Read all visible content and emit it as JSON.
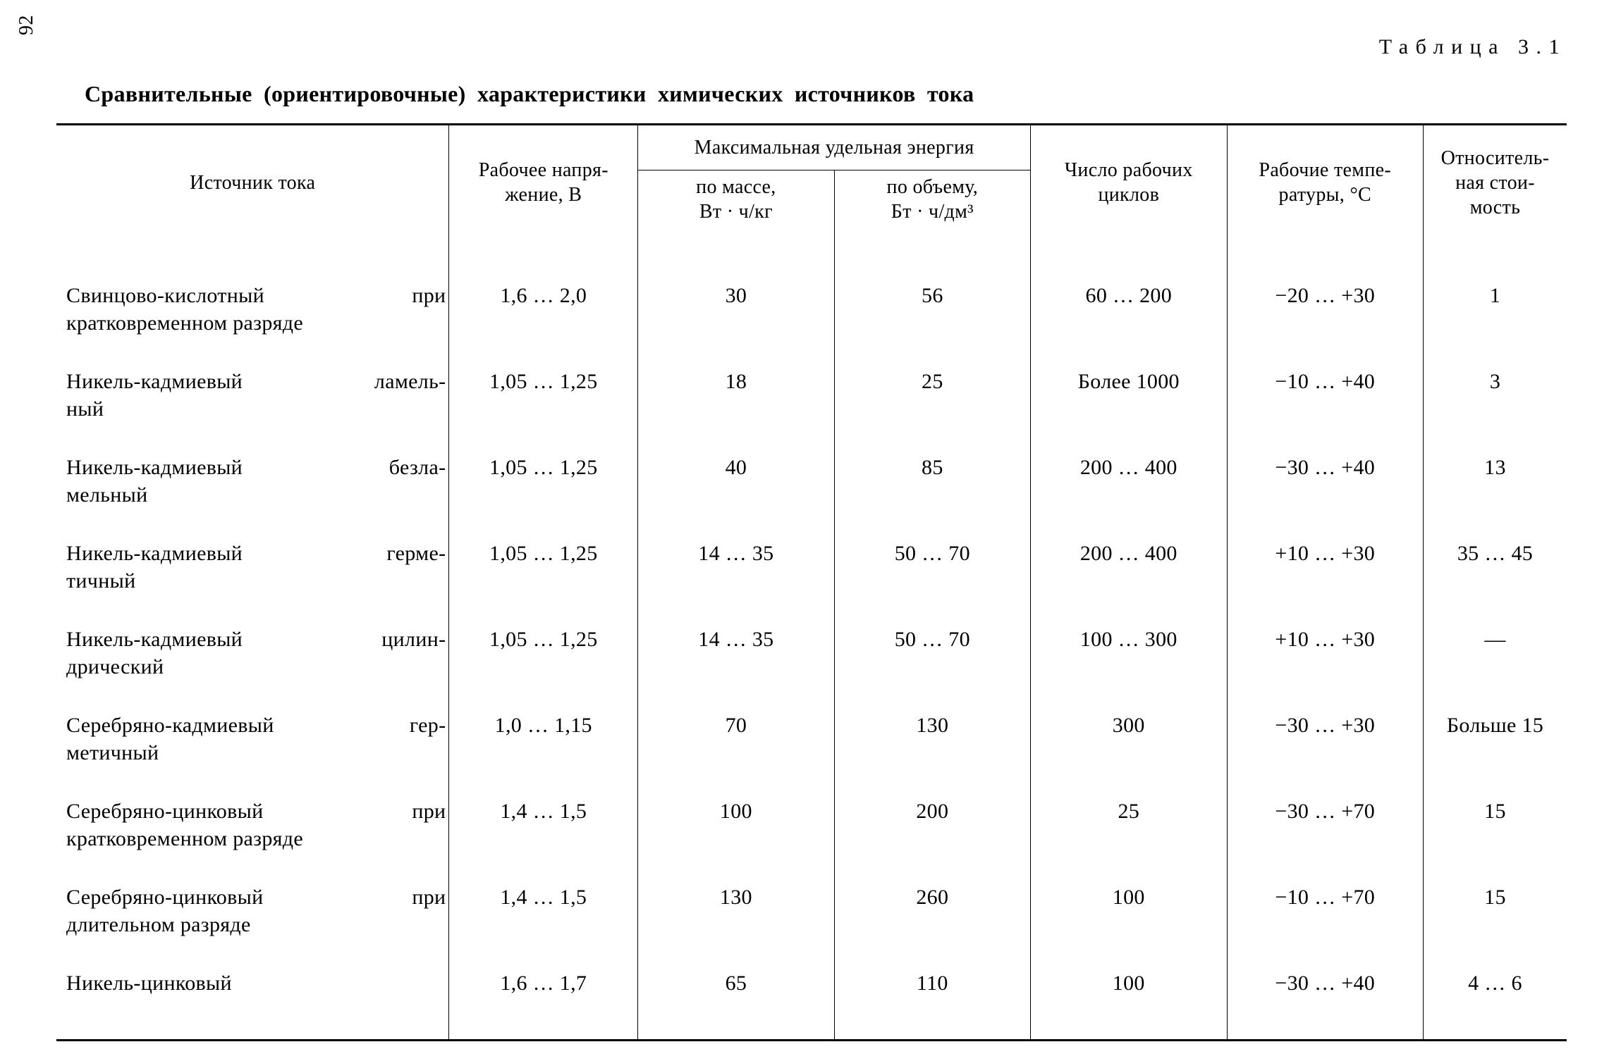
{
  "page_number": "92",
  "table_number": "Таблица 3.1",
  "title": "Сравнительные (ориентировочные) характеристики химических источников тока",
  "table": {
    "columns": {
      "source": "Источник тока",
      "voltage": "Рабочее напря-\nжение, В",
      "energy_span": "Максимальная удельная энергия",
      "by_mass": "по массе,\nВт · ч/кг",
      "by_vol": "по объему,\nБт · ч/дм³",
      "cycles": "Число рабочих\nциклов",
      "temp": "Рабочие темпе-\nратуры, °С",
      "cost": "Относитель-\nная стои-\nмость"
    },
    "rows": [
      {
        "name_l1": "Свинцово-кислотный при",
        "name_l2": "кратковременном разряде",
        "voltage": "1,6 … 2,0",
        "mass": "30",
        "vol": "56",
        "cycles": "60 … 200",
        "temp": "−20 … +30",
        "cost": "1"
      },
      {
        "name_l1": "Никель-кадмиевый ламель-",
        "name_l2": "ный",
        "voltage": "1,05 … 1,25",
        "mass": "18",
        "vol": "25",
        "cycles": "Более 1000",
        "temp": "−10 … +40",
        "cost": "3"
      },
      {
        "name_l1": "Никель-кадмиевый безла-",
        "name_l2": "мельный",
        "voltage": "1,05 … 1,25",
        "mass": "40",
        "vol": "85",
        "cycles": "200 … 400",
        "temp": "−30 … +40",
        "cost": "13"
      },
      {
        "name_l1": "Никель-кадмиевый герме-",
        "name_l2": "тичный",
        "voltage": "1,05 … 1,25",
        "mass": "14 … 35",
        "vol": "50 … 70",
        "cycles": "200 … 400",
        "temp": "+10 … +30",
        "cost": "35 … 45"
      },
      {
        "name_l1": "Никель-кадмиевый цилин-",
        "name_l2": "дрический",
        "voltage": "1,05 … 1,25",
        "mass": "14 … 35",
        "vol": "50 … 70",
        "cycles": "100 … 300",
        "temp": "+10 … +30",
        "cost": "—"
      },
      {
        "name_l1": "Серебряно-кадмиевый гер-",
        "name_l2": "метичный",
        "voltage": "1,0 … 1,15",
        "mass": "70",
        "vol": "130",
        "cycles": "300",
        "temp": "−30 … +30",
        "cost": "Больше 15"
      },
      {
        "name_l1": "Серебряно-цинковый при",
        "name_l2": "кратковременном разряде",
        "voltage": "1,4 … 1,5",
        "mass": "100",
        "vol": "200",
        "cycles": "25",
        "temp": "−30 … +70",
        "cost": "15"
      },
      {
        "name_l1": "Серебряно-цинковый при",
        "name_l2": "длительном разряде",
        "voltage": "1,4 … 1,5",
        "mass": "130",
        "vol": "260",
        "cycles": "100",
        "temp": "−10 … +70",
        "cost": "15"
      },
      {
        "name_l1": "Никель-цинковый",
        "name_l2": "",
        "voltage": "1,6 … 1,7",
        "mass": "65",
        "vol": "110",
        "cycles": "100",
        "temp": "−30 … +40",
        "cost": "4 … 6"
      }
    ]
  }
}
